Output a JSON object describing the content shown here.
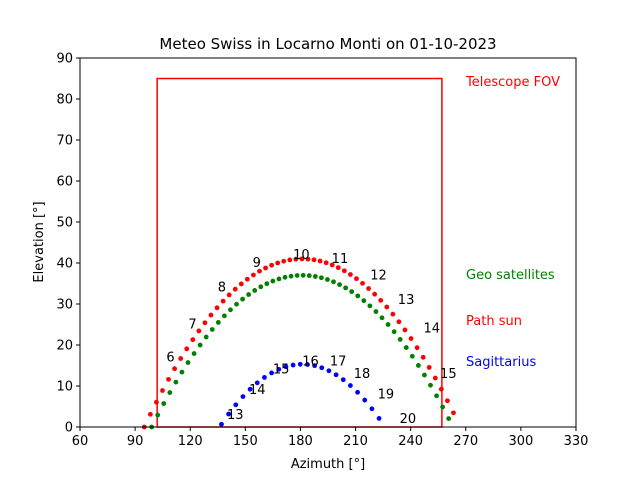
{
  "chart_data": {
    "type": "scatter",
    "title": "Meteo Swiss in Locarno Monti on 01-10-2023",
    "xlabel": "Azimuth [°]",
    "ylabel": "Elevation [°]",
    "xlim": [
      60,
      330
    ],
    "ylim": [
      0,
      90
    ],
    "xticks": [
      "60",
      "90",
      "120",
      "150",
      "180",
      "210",
      "240",
      "270",
      "300",
      "330"
    ],
    "yticks": [
      "0",
      "10",
      "20",
      "30",
      "40",
      "50",
      "60",
      "70",
      "80",
      "90"
    ],
    "grid": false,
    "legend_placement": "right",
    "legend": [
      {
        "label": "Telescope FOV",
        "color": "#ff0000"
      },
      {
        "label": "Geo satellites",
        "color": "#008000"
      },
      {
        "label": "Path sun",
        "color": "#ff0000"
      },
      {
        "label": "Sagittarius",
        "color": "#0000ff"
      }
    ],
    "telescope_fov": {
      "az_min": 102,
      "az_max": 257,
      "el_min": 0,
      "el_max": 85,
      "color": "#ff0000"
    },
    "series": [
      {
        "color": "#ff0000",
        "curve": "parabola",
        "az_start": 95,
        "az_end": 265,
        "peak_az": 181,
        "peak_el": 41,
        "step_az": 3.3,
        "hour_labels": [
          {
            "text": "6",
            "az": 107,
            "el": 16
          },
          {
            "text": "7",
            "az": 119,
            "el": 24
          },
          {
            "text": "8",
            "az": 135,
            "el": 33
          },
          {
            "text": "9",
            "az": 154,
            "el": 39
          },
          {
            "text": "10",
            "az": 176,
            "el": 41
          },
          {
            "text": "11",
            "az": 197,
            "el": 40
          },
          {
            "text": "12",
            "az": 218,
            "el": 36
          },
          {
            "text": "13",
            "az": 233,
            "el": 30
          },
          {
            "text": "14",
            "az": 247,
            "el": 23
          },
          {
            "text": "15",
            "az": 256,
            "el": 12
          }
        ]
      },
      {
        "color": "#008000",
        "curve": "parabola",
        "az_start": 99,
        "az_end": 262,
        "peak_az": 181,
        "peak_el": 37,
        "step_az": 3.3
      },
      {
        "color": "#0000ff",
        "curve": "parabola",
        "az_start": 137,
        "az_end": 226,
        "peak_az": 181,
        "peak_el": 15.3,
        "step_az": 3.9,
        "hour_labels": [
          {
            "text": "13",
            "az": 140,
            "el": 2
          },
          {
            "text": "14",
            "az": 152,
            "el": 8
          },
          {
            "text": "15",
            "az": 165,
            "el": 13
          },
          {
            "text": "16",
            "az": 181,
            "el": 15
          },
          {
            "text": "17",
            "az": 196,
            "el": 15
          },
          {
            "text": "18",
            "az": 209,
            "el": 12
          },
          {
            "text": "19",
            "az": 222,
            "el": 7
          },
          {
            "text": "20",
            "az": 234,
            "el": 1
          }
        ]
      }
    ]
  }
}
